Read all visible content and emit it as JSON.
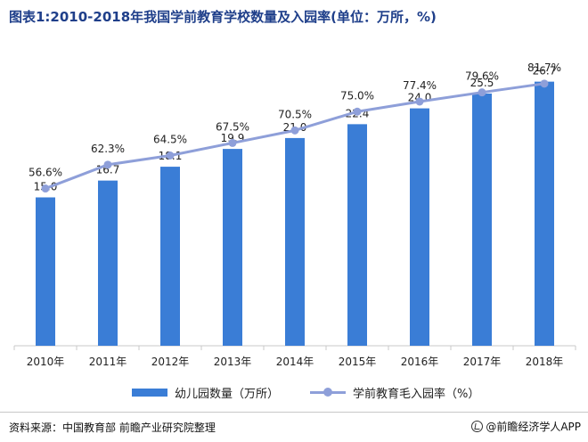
{
  "title": "图表1:2010-2018年我国学前教育学校数量及入园率(单位：万所，%)",
  "colors": {
    "title": "#1f3f8a",
    "bar": "#3a7dd6",
    "line": "#8e9fd9",
    "axis": "#c8c8c8",
    "text": "#222222"
  },
  "legend": {
    "bar_label": "幼儿园数量（万所）",
    "line_label": "学前教育毛入园率（%）"
  },
  "source": {
    "text": "资料来源：中国教育部 前瞻产业研究院整理",
    "brand": "@前瞻经济学人APP",
    "brand_icon": "qianzhan-logo-icon"
  },
  "chart_data": {
    "type": "bar",
    "categories": [
      "2010年",
      "2011年",
      "2012年",
      "2013年",
      "2014年",
      "2015年",
      "2016年",
      "2017年",
      "2018年"
    ],
    "series": [
      {
        "name": "幼儿园数量（万所）",
        "type": "bar",
        "values": [
          15.0,
          16.7,
          18.1,
          19.9,
          21.0,
          22.4,
          24.0,
          25.5,
          26.7
        ],
        "labels": [
          "15.0",
          "16.7",
          "18.1",
          "19.9",
          "21.0",
          "22.4",
          "24.0",
          "25.5",
          "26.7"
        ]
      },
      {
        "name": "学前教育毛入园率（%）",
        "type": "line",
        "values": [
          56.6,
          62.3,
          64.5,
          67.5,
          70.5,
          75.0,
          77.4,
          79.6,
          81.7
        ],
        "labels": [
          "56.6%",
          "62.3%",
          "64.5%",
          "67.5%",
          "70.5%",
          "75.0%",
          "77.4%",
          "79.6%",
          "81.7%"
        ]
      }
    ],
    "ylim_bar": [
      0,
      30
    ],
    "ylim_line": [
      0,
      100
    ],
    "grid": false,
    "legend_position": "bottom"
  }
}
